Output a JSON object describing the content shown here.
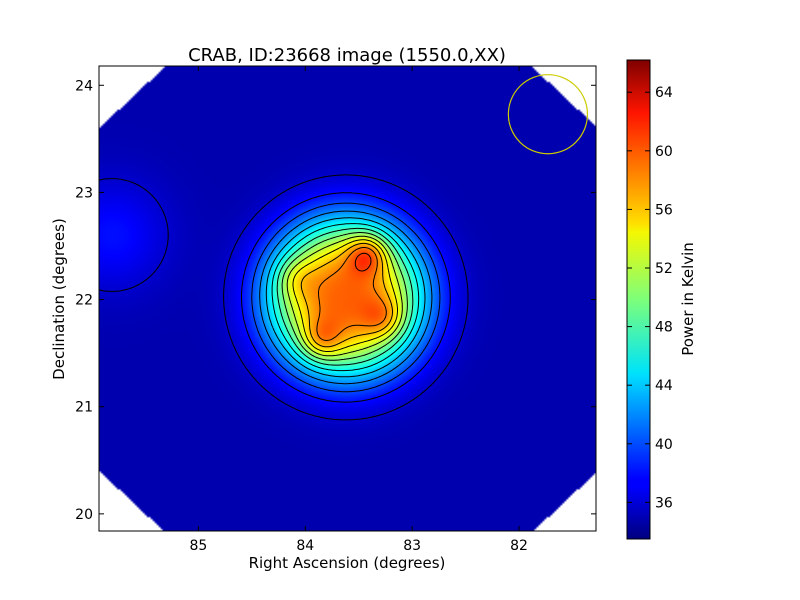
{
  "chart_data": {
    "type": "heatmap",
    "title": "CRAB, ID:23668 image (1550.0,XX)",
    "xlabel": "Right Ascension (degrees)",
    "ylabel": "Declination (degrees)",
    "colorbar_label": "Power in Kelvin",
    "xlim": [
      85.93,
      81.28
    ],
    "ylim": [
      19.84,
      24.18
    ],
    "xticks": [
      85,
      84,
      83,
      82
    ],
    "yticks": [
      20,
      21,
      22,
      23,
      24
    ],
    "cbar_range": [
      33.5,
      66.2
    ],
    "cbar_ticks": [
      36,
      40,
      44,
      48,
      52,
      56,
      60,
      64
    ],
    "colormap": "jet",
    "background_level": 35,
    "peaks": [
      {
        "ra": 83.42,
        "dec": 22.43,
        "value": 65.5
      },
      {
        "ra": 83.85,
        "dec": 21.62,
        "value": 63.5
      },
      {
        "ra": 83.27,
        "dec": 21.83,
        "value": 62.5
      },
      {
        "ra": 84.1,
        "dec": 22.2,
        "value": 61.5
      }
    ],
    "beam_circle": {
      "ra": 81.73,
      "dec": 23.73,
      "radius_deg": 0.37,
      "color": "#cccc00"
    },
    "contour_color": "#000000"
  }
}
